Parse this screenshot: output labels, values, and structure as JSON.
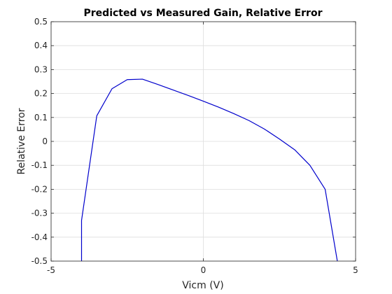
{
  "chart_data": {
    "type": "line",
    "title": "Predicted vs Measured Gain, Relative Error",
    "xlabel": "Vicm (V)",
    "ylabel": "Relative Error",
    "xlim": [
      -5,
      5
    ],
    "ylim": [
      -0.5,
      0.5
    ],
    "x_ticks": [
      -5,
      0,
      5
    ],
    "x_tick_labels": [
      "-5",
      "0",
      "5"
    ],
    "y_ticks": [
      -0.5,
      -0.4,
      -0.3,
      -0.2,
      -0.1,
      0,
      0.1,
      0.2,
      0.3,
      0.4,
      0.5
    ],
    "y_tick_labels": [
      "-0.5",
      "-0.4",
      "-0.3",
      "-0.2",
      "-0.1",
      "0",
      "0.1",
      "0.2",
      "0.3",
      "0.4",
      "0.5"
    ],
    "grid": true,
    "legend": "none",
    "series": [
      {
        "color": "#0000cc",
        "x": [
          -4.0,
          -4.0,
          -3.5,
          -3.0,
          -2.5,
          -2.0,
          -1.5,
          -1.0,
          -0.5,
          0.0,
          0.5,
          1.0,
          1.5,
          2.0,
          2.5,
          3.0,
          3.5,
          4.0,
          4.4
        ],
        "y": [
          -0.5,
          -0.33,
          0.107,
          0.22,
          0.258,
          0.26,
          0.238,
          0.215,
          0.192,
          0.168,
          0.143,
          0.116,
          0.087,
          0.052,
          0.01,
          -0.035,
          -0.1,
          -0.2,
          -0.5
        ]
      }
    ]
  }
}
